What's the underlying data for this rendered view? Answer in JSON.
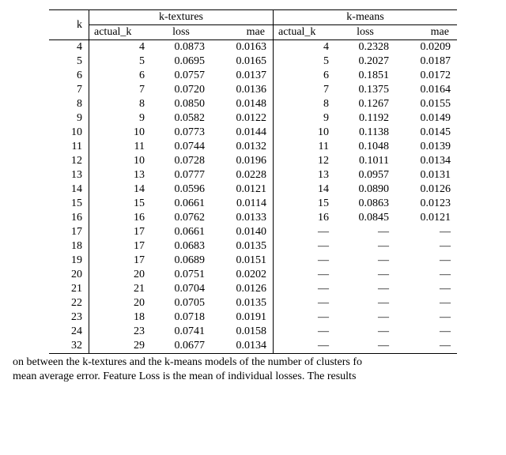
{
  "table": {
    "header": {
      "k": "k",
      "group_a": "k-textures",
      "group_b": "k-means",
      "sub": {
        "actual_k": "actual_k",
        "loss": "loss",
        "mae": "mae"
      }
    },
    "rows": [
      {
        "k": "4",
        "a_ak": "4",
        "a_loss": "0.0873",
        "a_mae": "0.0163",
        "b_ak": "4",
        "b_loss": "0.2328",
        "b_mae": "0.0209"
      },
      {
        "k": "5",
        "a_ak": "5",
        "a_loss": "0.0695",
        "a_mae": "0.0165",
        "b_ak": "5",
        "b_loss": "0.2027",
        "b_mae": "0.0187"
      },
      {
        "k": "6",
        "a_ak": "6",
        "a_loss": "0.0757",
        "a_mae": "0.0137",
        "b_ak": "6",
        "b_loss": "0.1851",
        "b_mae": "0.0172"
      },
      {
        "k": "7",
        "a_ak": "7",
        "a_loss": "0.0720",
        "a_mae": "0.0136",
        "b_ak": "7",
        "b_loss": "0.1375",
        "b_mae": "0.0164"
      },
      {
        "k": "8",
        "a_ak": "8",
        "a_loss": "0.0850",
        "a_mae": "0.0148",
        "b_ak": "8",
        "b_loss": "0.1267",
        "b_mae": "0.0155"
      },
      {
        "k": "9",
        "a_ak": "9",
        "a_loss": "0.0582",
        "a_mae": "0.0122",
        "b_ak": "9",
        "b_loss": "0.1192",
        "b_mae": "0.0149"
      },
      {
        "k": "10",
        "a_ak": "10",
        "a_loss": "0.0773",
        "a_mae": "0.0144",
        "b_ak": "10",
        "b_loss": "0.1138",
        "b_mae": "0.0145"
      },
      {
        "k": "11",
        "a_ak": "11",
        "a_loss": "0.0744",
        "a_mae": "0.0132",
        "b_ak": "11",
        "b_loss": "0.1048",
        "b_mae": "0.0139"
      },
      {
        "k": "12",
        "a_ak": "10",
        "a_loss": "0.0728",
        "a_mae": "0.0196",
        "b_ak": "12",
        "b_loss": "0.1011",
        "b_mae": "0.0134"
      },
      {
        "k": "13",
        "a_ak": "13",
        "a_loss": "0.0777",
        "a_mae": "0.0228",
        "b_ak": "13",
        "b_loss": "0.0957",
        "b_mae": "0.0131"
      },
      {
        "k": "14",
        "a_ak": "14",
        "a_loss": "0.0596",
        "a_mae": "0.0121",
        "b_ak": "14",
        "b_loss": "0.0890",
        "b_mae": "0.0126"
      },
      {
        "k": "15",
        "a_ak": "15",
        "a_loss": "0.0661",
        "a_mae": "0.0114",
        "b_ak": "15",
        "b_loss": "0.0863",
        "b_mae": "0.0123"
      },
      {
        "k": "16",
        "a_ak": "16",
        "a_loss": "0.0762",
        "a_mae": "0.0133",
        "b_ak": "16",
        "b_loss": "0.0845",
        "b_mae": "0.0121"
      },
      {
        "k": "17",
        "a_ak": "17",
        "a_loss": "0.0661",
        "a_mae": "0.0140",
        "b_ak": "—",
        "b_loss": "—",
        "b_mae": "—"
      },
      {
        "k": "18",
        "a_ak": "17",
        "a_loss": "0.0683",
        "a_mae": "0.0135",
        "b_ak": "—",
        "b_loss": "—",
        "b_mae": "—"
      },
      {
        "k": "19",
        "a_ak": "17",
        "a_loss": "0.0689",
        "a_mae": "0.0151",
        "b_ak": "—",
        "b_loss": "—",
        "b_mae": "—"
      },
      {
        "k": "20",
        "a_ak": "20",
        "a_loss": "0.0751",
        "a_mae": "0.0202",
        "b_ak": "—",
        "b_loss": "—",
        "b_mae": "—"
      },
      {
        "k": "21",
        "a_ak": "21",
        "a_loss": "0.0704",
        "a_mae": "0.0126",
        "b_ak": "—",
        "b_loss": "—",
        "b_mae": "—"
      },
      {
        "k": "22",
        "a_ak": "20",
        "a_loss": "0.0705",
        "a_mae": "0.0135",
        "b_ak": "—",
        "b_loss": "—",
        "b_mae": "—"
      },
      {
        "k": "23",
        "a_ak": "18",
        "a_loss": "0.0718",
        "a_mae": "0.0191",
        "b_ak": "—",
        "b_loss": "—",
        "b_mae": "—"
      },
      {
        "k": "24",
        "a_ak": "23",
        "a_loss": "0.0741",
        "a_mae": "0.0158",
        "b_ak": "—",
        "b_loss": "—",
        "b_mae": "—"
      },
      {
        "k": "32",
        "a_ak": "29",
        "a_loss": "0.0677",
        "a_mae": "0.0134",
        "b_ak": "—",
        "b_loss": "—",
        "b_mae": "—"
      }
    ]
  },
  "caption": {
    "line1": "on between the k-textures and the k-means models of the number of clusters fo",
    "line2": " mean average error. Feature Loss is the mean of individual losses. The results "
  },
  "style": {
    "font_family": "Times New Roman",
    "font_size_pt": 11,
    "text_color": "#000000",
    "background_color": "#ffffff",
    "rule_color": "#000000"
  }
}
